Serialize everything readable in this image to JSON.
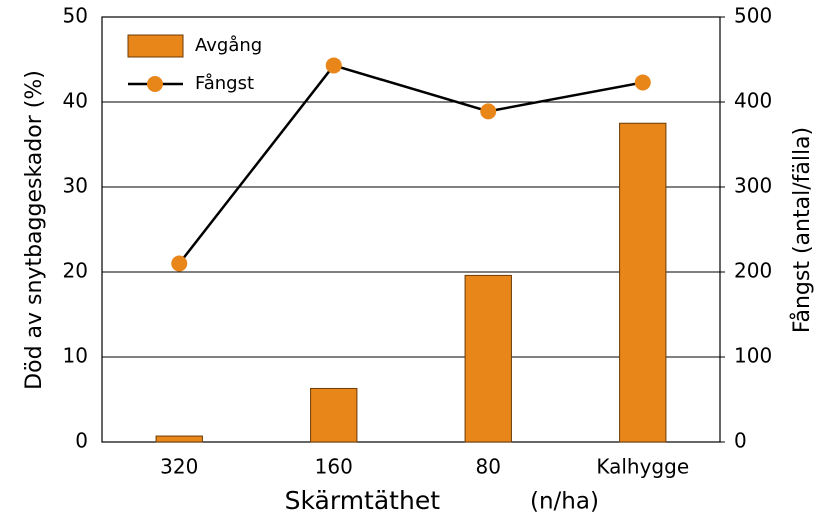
{
  "chart_data": {
    "type": "bar",
    "categories": [
      "320",
      "160",
      "80",
      "Kalhygge"
    ],
    "series": [
      {
        "name": "Avgång",
        "type": "bar",
        "color": "#e8861a",
        "values": [
          0.7,
          6.3,
          19.6,
          37.5
        ]
      },
      {
        "name": "Fångst",
        "type": "line",
        "axis": "y2",
        "color": "#e8861a",
        "line_color": "#000000",
        "values": [
          210,
          443,
          389,
          423
        ]
      }
    ],
    "ylabel": "Död av snytbaggeskador (%)",
    "y2label": "Fångst (antal/fälla)",
    "xlabel": "Skärmtäthet",
    "xlabel_unit": "(n/ha)",
    "ylim": [
      0,
      50
    ],
    "yticks": [
      0,
      10,
      20,
      30,
      40,
      50
    ],
    "y2lim": [
      0,
      500
    ],
    "y2ticks": [
      0,
      100,
      200,
      300,
      400,
      500
    ],
    "grid": true,
    "legend": "upper left"
  }
}
